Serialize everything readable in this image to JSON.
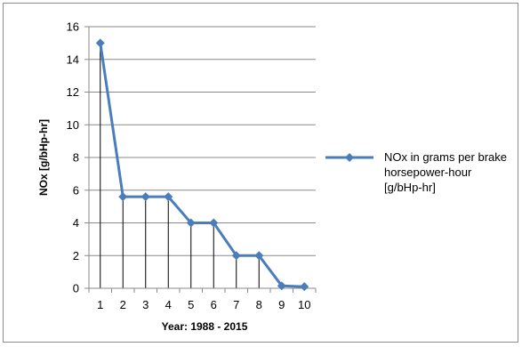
{
  "chart_data": {
    "type": "line",
    "categories": [
      "1",
      "2",
      "3",
      "4",
      "5",
      "6",
      "7",
      "8",
      "9",
      "10"
    ],
    "series": [
      {
        "name": "NOx in grams per brake horsepower-hour [g/bHp-hr]",
        "values": [
          15,
          5.6,
          5.6,
          5.6,
          4,
          4,
          2,
          2,
          0.15,
          0.1
        ],
        "color": "#4a7ebb"
      }
    ],
    "yticks": [
      0,
      2,
      4,
      6,
      8,
      10,
      12,
      14,
      16
    ],
    "ylim": [
      0,
      16
    ],
    "xlabel": "Year: 1988 - 2015",
    "ylabel": "NOx [g/bHp-hr]",
    "grid": "horizontal",
    "drop_lines": true,
    "legend_position": "right"
  }
}
